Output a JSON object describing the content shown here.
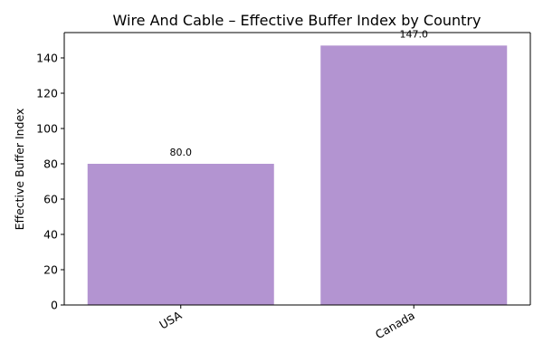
{
  "chart_data": {
    "type": "bar",
    "title": "Wire And Cable – Effective Buffer Index by Country",
    "xlabel": "",
    "ylabel": "Effective Buffer Index",
    "categories": [
      "USA",
      "Canada"
    ],
    "values": [
      80.0,
      147.0
    ],
    "data_labels": [
      "80.0",
      "147.0"
    ],
    "ylim": [
      0,
      154.35
    ],
    "yticks": [
      0,
      20,
      40,
      60,
      80,
      100,
      120,
      140
    ],
    "grid": false,
    "legend": "none",
    "bar_color": "#b394d1"
  }
}
